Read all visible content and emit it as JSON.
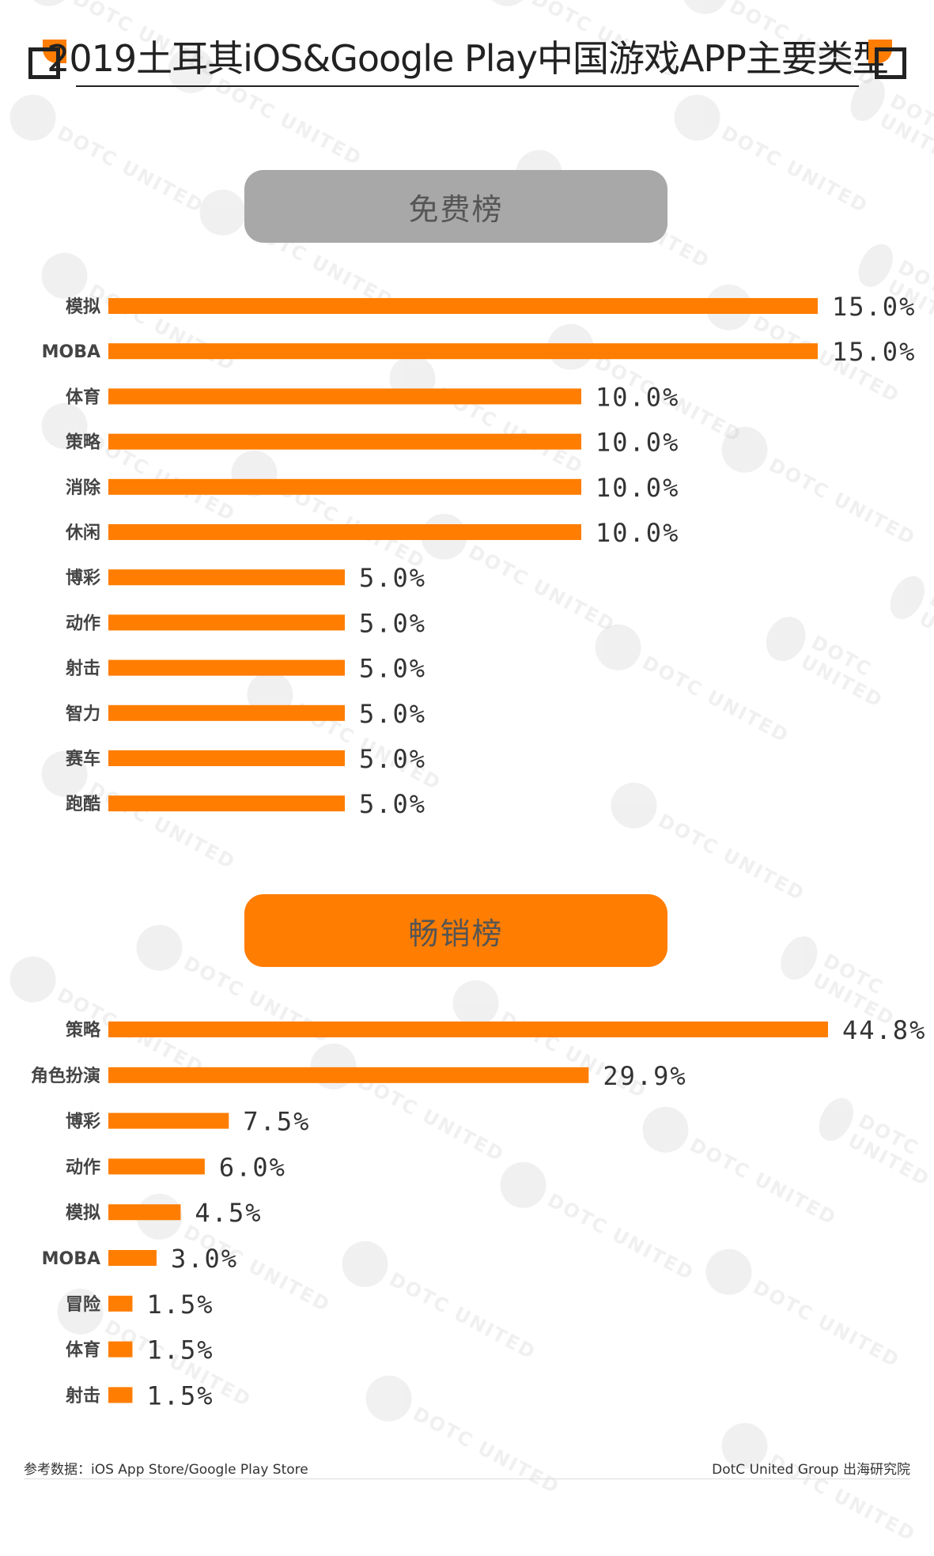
{
  "title": "2019土耳其iOS&Google Play中国游戏APP主要类型",
  "colors": {
    "bar": "#ff7d00",
    "free_pill": "#a8a8a8",
    "grossing_pill": "#ff7d00"
  },
  "watermark_text": "DOTC UNITED",
  "chart_data": [
    {
      "type": "bar",
      "orientation": "horizontal",
      "title": "免费榜",
      "categories": [
        "模拟",
        "MOBA",
        "体育",
        "策略",
        "消除",
        "休闲",
        "博彩",
        "动作",
        "射击",
        "智力",
        "赛车",
        "跑酷"
      ],
      "values": [
        15.0,
        15.0,
        10.0,
        10.0,
        10.0,
        10.0,
        5.0,
        5.0,
        5.0,
        5.0,
        5.0,
        5.0
      ],
      "labels": [
        "15.0%",
        "15.0%",
        "10.0%",
        "10.0%",
        "10.0%",
        "10.0%",
        "5.0%",
        "5.0%",
        "5.0%",
        "5.0%",
        "5.0%",
        "5.0%"
      ],
      "xlim": [
        0,
        15
      ],
      "grid": false
    },
    {
      "type": "bar",
      "orientation": "horizontal",
      "title": "畅销榜",
      "categories": [
        "策略",
        "角色扮演",
        "博彩",
        "动作",
        "模拟",
        "MOBA",
        "冒险",
        "体育",
        "射击"
      ],
      "values": [
        44.8,
        29.9,
        7.5,
        6.0,
        4.5,
        3.0,
        1.5,
        1.5,
        1.5
      ],
      "labels": [
        "44.8%",
        "29.9%",
        "7.5%",
        "6.0%",
        "4.5%",
        "3.0%",
        "1.5%",
        "1.5%",
        "1.5%"
      ],
      "xlim": [
        0,
        44.8
      ],
      "grid": false
    }
  ],
  "footer": {
    "source": "参考数据：iOS App Store/Google Play Store",
    "publisher": "DotC United Group  出海研究院"
  }
}
